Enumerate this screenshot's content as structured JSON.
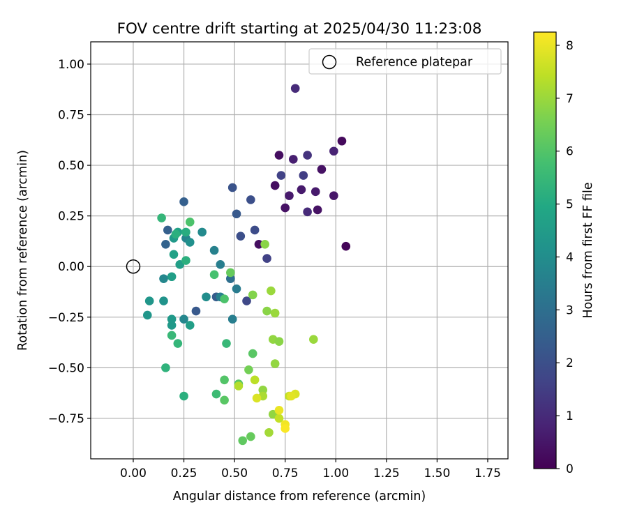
{
  "chart_data": {
    "type": "scatter",
    "title": "FOV centre drift starting at 2025/04/30 11:23:08",
    "xlabel": "Angular distance from reference (arcmin)",
    "ylabel": "Rotation from reference (arcmin)",
    "xlim": [
      -0.21,
      1.85
    ],
    "ylim": [
      -0.95,
      1.11
    ],
    "xticks": [
      "0.00",
      "0.25",
      "0.50",
      "0.75",
      "1.00",
      "1.25",
      "1.50",
      "1.75"
    ],
    "yticks": [
      "−0.75",
      "−0.50",
      "−0.25",
      "0.00",
      "0.25",
      "0.50",
      "0.75",
      "1.00"
    ],
    "grid": true,
    "legend": {
      "position": "top-right",
      "label": "Reference platepar"
    },
    "reference_point": {
      "x": 0.0,
      "y": 0.0
    },
    "colorbar": {
      "label": "Hours from first FF file",
      "min": 0,
      "max": 8.25,
      "ticks": [
        "0",
        "1",
        "2",
        "3",
        "4",
        "5",
        "6",
        "7",
        "8"
      ],
      "colormap": "viridis"
    },
    "points": [
      {
        "x": 1.05,
        "y": 0.1,
        "h": 0.1
      },
      {
        "x": 1.03,
        "y": 0.62,
        "h": 0.2
      },
      {
        "x": 0.72,
        "y": 0.55,
        "h": 0.3
      },
      {
        "x": 0.7,
        "y": 0.4,
        "h": 0.3
      },
      {
        "x": 0.75,
        "y": 0.29,
        "h": 0.4
      },
      {
        "x": 0.62,
        "y": 0.11,
        "h": 0.3
      },
      {
        "x": 0.93,
        "y": 0.48,
        "h": 0.4
      },
      {
        "x": 0.91,
        "y": 0.28,
        "h": 0.4
      },
      {
        "x": 0.99,
        "y": 0.35,
        "h": 0.5
      },
      {
        "x": 0.9,
        "y": 0.37,
        "h": 0.6
      },
      {
        "x": 0.83,
        "y": 0.38,
        "h": 0.6
      },
      {
        "x": 0.77,
        "y": 0.35,
        "h": 0.6
      },
      {
        "x": 0.79,
        "y": 0.53,
        "h": 0.7
      },
      {
        "x": 0.99,
        "y": 0.57,
        "h": 0.8
      },
      {
        "x": 0.8,
        "y": 0.88,
        "h": 1.0
      },
      {
        "x": 0.86,
        "y": 0.27,
        "h": 1.0
      },
      {
        "x": 0.86,
        "y": 0.55,
        "h": 1.2
      },
      {
        "x": 0.84,
        "y": 0.45,
        "h": 1.5
      },
      {
        "x": 0.73,
        "y": 0.45,
        "h": 1.6
      },
      {
        "x": 0.66,
        "y": 0.04,
        "h": 1.6
      },
      {
        "x": 0.56,
        "y": -0.17,
        "h": 1.8
      },
      {
        "x": 0.6,
        "y": 0.18,
        "h": 1.9
      },
      {
        "x": 0.53,
        "y": 0.15,
        "h": 2.0
      },
      {
        "x": 0.58,
        "y": 0.33,
        "h": 2.0
      },
      {
        "x": 0.49,
        "y": 0.39,
        "h": 2.1
      },
      {
        "x": 0.51,
        "y": 0.26,
        "h": 2.3
      },
      {
        "x": 0.31,
        "y": -0.22,
        "h": 2.3
      },
      {
        "x": 0.41,
        "y": -0.15,
        "h": 2.4
      },
      {
        "x": 0.25,
        "y": 0.32,
        "h": 2.5
      },
      {
        "x": 0.17,
        "y": 0.18,
        "h": 2.5
      },
      {
        "x": 0.16,
        "y": 0.11,
        "h": 2.6
      },
      {
        "x": 0.48,
        "y": -0.06,
        "h": 3.0
      },
      {
        "x": 0.51,
        "y": -0.11,
        "h": 3.4
      },
      {
        "x": 0.43,
        "y": 0.01,
        "h": 3.5
      },
      {
        "x": 0.43,
        "y": -0.15,
        "h": 3.6
      },
      {
        "x": 0.4,
        "y": 0.08,
        "h": 3.6
      },
      {
        "x": 0.49,
        "y": -0.26,
        "h": 3.5
      },
      {
        "x": 0.34,
        "y": 0.17,
        "h": 3.9
      },
      {
        "x": 0.36,
        "y": -0.15,
        "h": 4.0
      },
      {
        "x": 0.26,
        "y": 0.14,
        "h": 3.7
      },
      {
        "x": 0.28,
        "y": 0.12,
        "h": 4.1
      },
      {
        "x": 0.15,
        "y": -0.06,
        "h": 3.8
      },
      {
        "x": 0.25,
        "y": -0.26,
        "h": 3.8
      },
      {
        "x": 0.15,
        "y": -0.17,
        "h": 4.2
      },
      {
        "x": 0.08,
        "y": -0.17,
        "h": 4.3
      },
      {
        "x": 0.07,
        "y": -0.24,
        "h": 4.3
      },
      {
        "x": 0.19,
        "y": -0.26,
        "h": 4.4
      },
      {
        "x": 0.19,
        "y": -0.29,
        "h": 4.4
      },
      {
        "x": 0.28,
        "y": -0.29,
        "h": 4.6
      },
      {
        "x": 0.2,
        "y": 0.14,
        "h": 4.4
      },
      {
        "x": 0.22,
        "y": 0.17,
        "h": 4.7
      },
      {
        "x": 0.23,
        "y": 0.01,
        "h": 4.6
      },
      {
        "x": 0.19,
        "y": -0.05,
        "h": 4.6
      },
      {
        "x": 0.2,
        "y": 0.06,
        "h": 4.7
      },
      {
        "x": 0.26,
        "y": 0.17,
        "h": 5.1
      },
      {
        "x": 0.21,
        "y": 0.16,
        "h": 5.2
      },
      {
        "x": 0.26,
        "y": 0.03,
        "h": 5.2
      },
      {
        "x": 0.25,
        "y": -0.64,
        "h": 5.2
      },
      {
        "x": 0.16,
        "y": -0.5,
        "h": 5.3
      },
      {
        "x": 0.14,
        "y": 0.24,
        "h": 5.4
      },
      {
        "x": 0.22,
        "y": -0.38,
        "h": 5.4
      },
      {
        "x": 0.19,
        "y": -0.34,
        "h": 5.5
      },
      {
        "x": 0.46,
        "y": -0.38,
        "h": 5.5
      },
      {
        "x": 0.41,
        "y": -0.63,
        "h": 5.6
      },
      {
        "x": 0.45,
        "y": -0.16,
        "h": 5.9
      },
      {
        "x": 0.4,
        "y": -0.04,
        "h": 5.8
      },
      {
        "x": 0.28,
        "y": 0.22,
        "h": 5.9
      },
      {
        "x": 0.45,
        "y": -0.56,
        "h": 6.0
      },
      {
        "x": 0.45,
        "y": -0.66,
        "h": 6.1
      },
      {
        "x": 0.48,
        "y": -0.03,
        "h": 6.3
      },
      {
        "x": 0.52,
        "y": -0.58,
        "h": 6.1
      },
      {
        "x": 0.59,
        "y": -0.43,
        "h": 6.1
      },
      {
        "x": 0.54,
        "y": -0.86,
        "h": 6.2
      },
      {
        "x": 0.58,
        "y": -0.84,
        "h": 6.3
      },
      {
        "x": 0.57,
        "y": -0.51,
        "h": 6.5
      },
      {
        "x": 0.59,
        "y": -0.14,
        "h": 6.7
      },
      {
        "x": 0.65,
        "y": 0.11,
        "h": 6.8
      },
      {
        "x": 0.66,
        "y": -0.22,
        "h": 6.8
      },
      {
        "x": 0.69,
        "y": -0.36,
        "h": 6.9
      },
      {
        "x": 0.7,
        "y": -0.48,
        "h": 6.9
      },
      {
        "x": 0.72,
        "y": -0.37,
        "h": 6.8
      },
      {
        "x": 0.64,
        "y": -0.61,
        "h": 6.9
      },
      {
        "x": 0.69,
        "y": -0.73,
        "h": 6.9
      },
      {
        "x": 0.68,
        "y": -0.12,
        "h": 7.0
      },
      {
        "x": 0.7,
        "y": -0.23,
        "h": 7.0
      },
      {
        "x": 0.89,
        "y": -0.36,
        "h": 7.0
      },
      {
        "x": 0.67,
        "y": -0.82,
        "h": 7.1
      },
      {
        "x": 0.64,
        "y": -0.64,
        "h": 7.2
      },
      {
        "x": 0.6,
        "y": -0.56,
        "h": 7.4
      },
      {
        "x": 0.52,
        "y": -0.59,
        "h": 7.3
      },
      {
        "x": 0.72,
        "y": -0.75,
        "h": 7.5
      },
      {
        "x": 0.77,
        "y": -0.64,
        "h": 7.5
      },
      {
        "x": 0.61,
        "y": -0.65,
        "h": 7.8
      },
      {
        "x": 0.8,
        "y": -0.63,
        "h": 7.8
      },
      {
        "x": 0.78,
        "y": -0.64,
        "h": 7.9
      },
      {
        "x": 0.72,
        "y": -0.71,
        "h": 8.0
      },
      {
        "x": 0.75,
        "y": -0.78,
        "h": 8.1
      },
      {
        "x": 0.75,
        "y": -0.8,
        "h": 8.2
      }
    ]
  }
}
